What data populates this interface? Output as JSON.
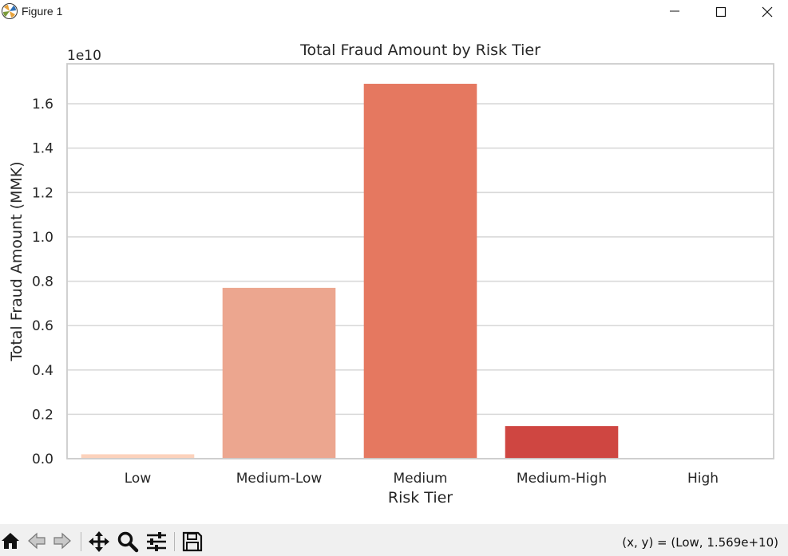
{
  "window": {
    "title": "Figure 1",
    "app_icon": "matplotlib-icon",
    "controls": [
      "minimize-icon",
      "maximize-icon",
      "close-icon"
    ]
  },
  "chart_data": {
    "type": "bar",
    "title": "Total Fraud Amount by Risk Tier",
    "xlabel": "Risk Tier",
    "ylabel": "Total Fraud Amount (MMK)",
    "offset_label": "1e10",
    "categories": [
      "Low",
      "Medium-Low",
      "Medium",
      "Medium-High",
      "High"
    ],
    "values": [
      0.02,
      0.77,
      1.69,
      0.147,
      0.0
    ],
    "value_scale": "1e10",
    "ylim": [
      0,
      1.78
    ],
    "yticks": [
      "0.0",
      "0.2",
      "0.4",
      "0.6",
      "0.8",
      "1.0",
      "1.2",
      "1.4",
      "1.6"
    ],
    "grid": "horizontal",
    "colors": [
      "#fcd2bc",
      "#eca68f",
      "#e57860",
      "#cf4641",
      "#a1171d"
    ],
    "axes_edge_color": "#cccccc",
    "grid_color": "#d9d9d9",
    "legend": "none"
  },
  "toolbar": {
    "buttons": [
      "home-icon",
      "back-icon",
      "forward-icon",
      "pan-icon",
      "zoom-icon",
      "configure-subplots-icon",
      "save-icon"
    ],
    "coords_text": "(x, y) = (Low, 1.569e+10)"
  }
}
